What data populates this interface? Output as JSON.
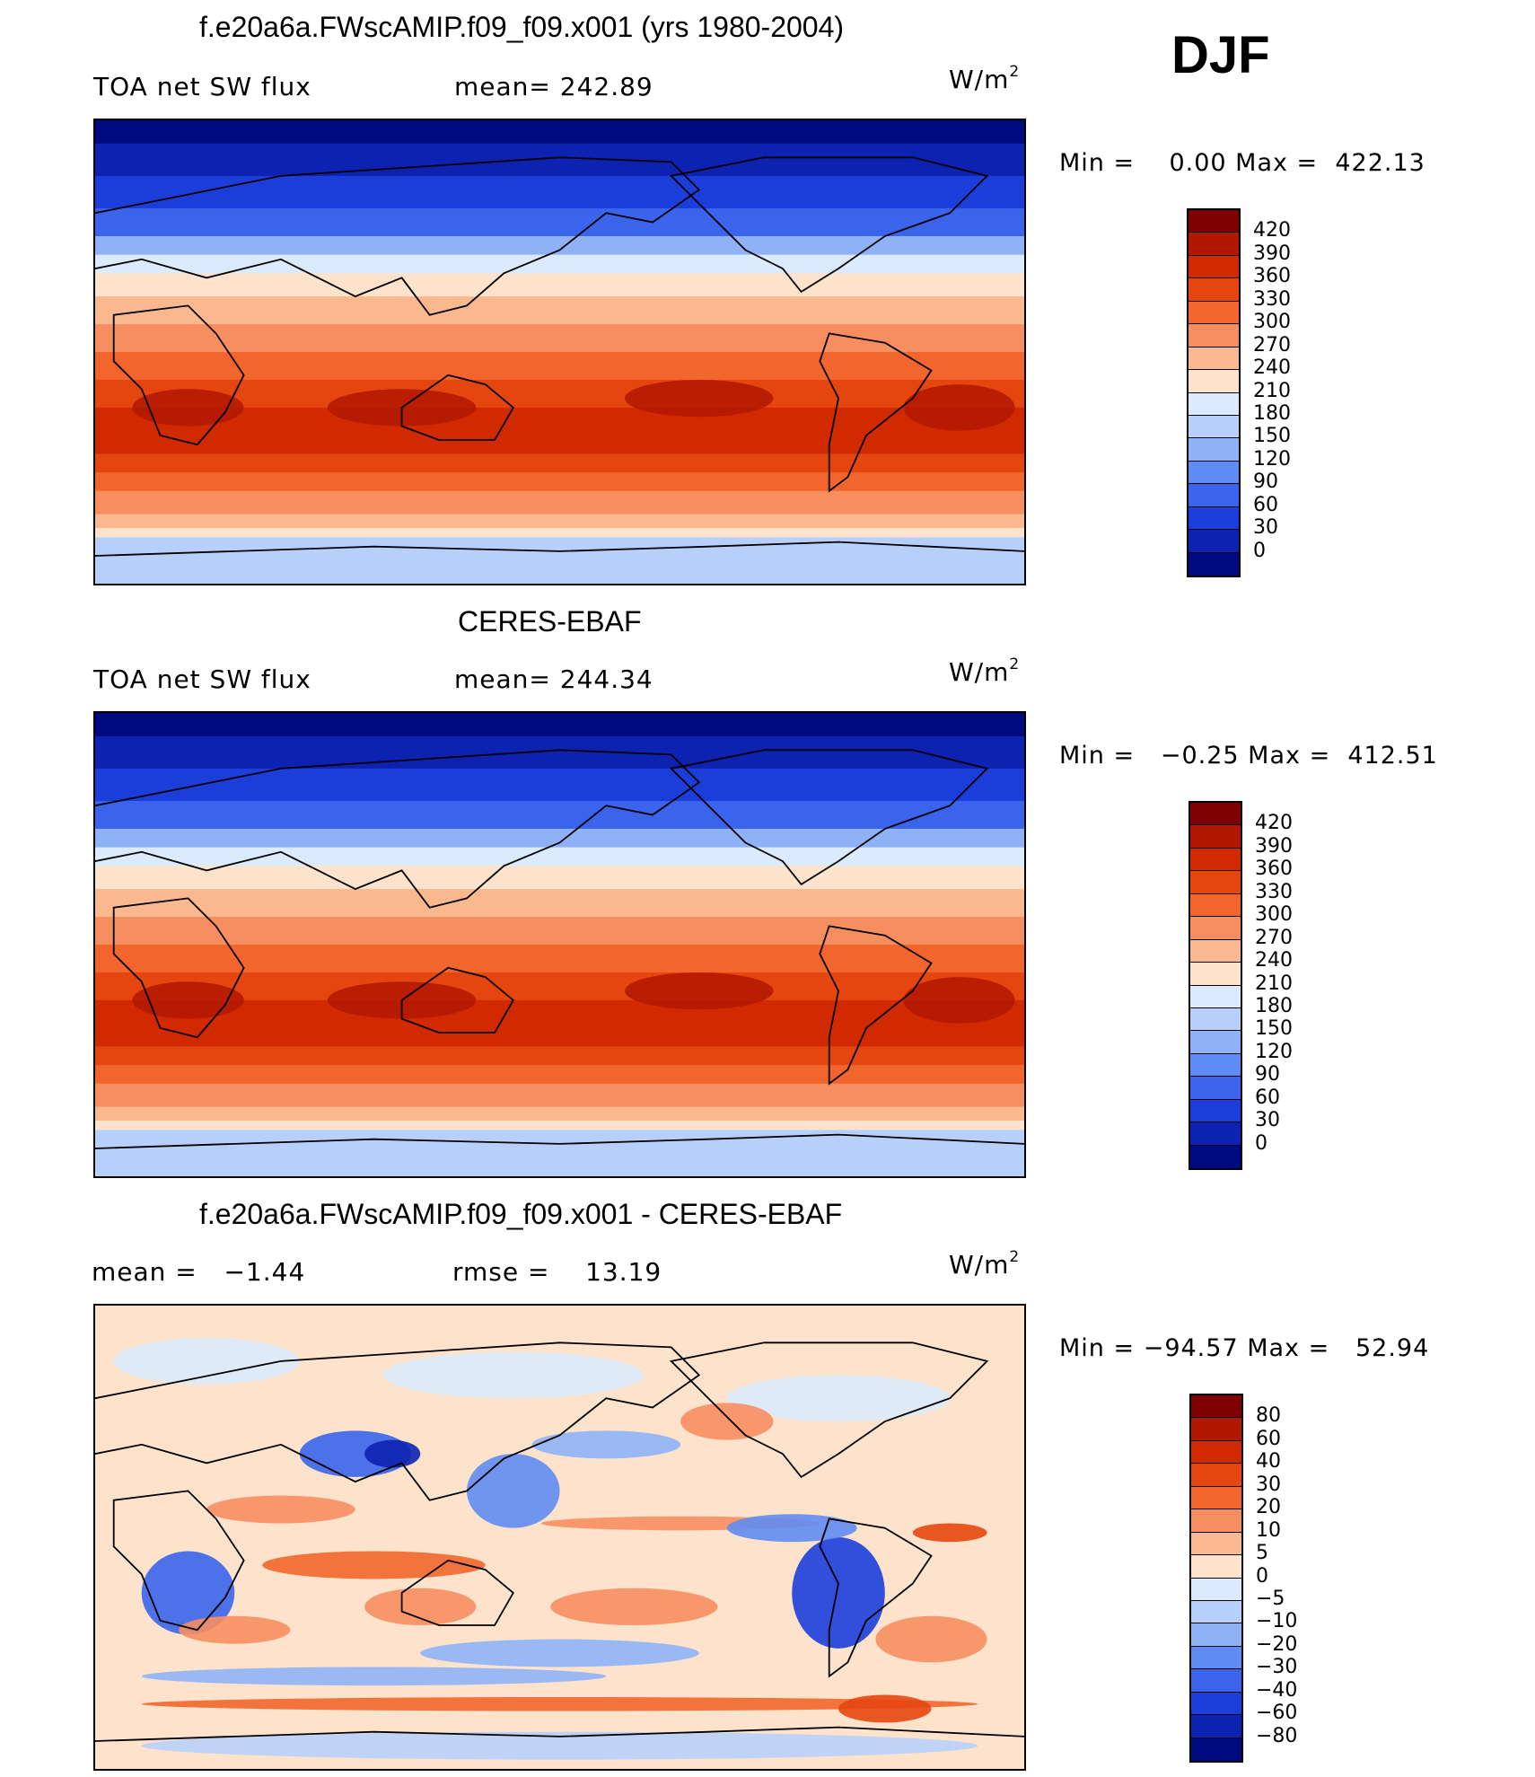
{
  "season": "DJF",
  "panels": [
    {
      "title": "f.e20a6a.FWscAMIP.f09_f09.x001 (yrs 1980-2004)",
      "left_label": "TOA net SW flux",
      "mid_label": "mean=  242.89",
      "unit": "W/m",
      "unit_sup": "2",
      "minmax": "Min =    0.00 Max =  422.13"
    },
    {
      "title": "CERES-EBAF",
      "left_label": "TOA net SW flux",
      "mid_label": "mean=  244.34",
      "unit": "W/m",
      "unit_sup": "2",
      "minmax": "Min =   −0.25 Max =  412.51"
    },
    {
      "title": "f.e20a6a.FWscAMIP.f09_f09.x001 - CERES-EBAF",
      "left_label": "mean =   −1.44",
      "mid_label": "rmse =    13.19",
      "unit": "W/m",
      "unit_sup": "2",
      "minmax": "Min = −94.57 Max =   52.94"
    }
  ],
  "colorbars": [
    {
      "labels": [
        "420",
        "390",
        "360",
        "330",
        "300",
        "270",
        "240",
        "210",
        "180",
        "150",
        "120",
        "90",
        "60",
        "30",
        "0"
      ],
      "colors": [
        "#7f0000",
        "#b21800",
        "#d22a00",
        "#e5460f",
        "#f2662e",
        "#f78e60",
        "#fab88f",
        "#fde3cc",
        "#dbeafc",
        "#b7d0fb",
        "#8fb2f7",
        "#5f8cf2",
        "#3a64ec",
        "#1b3edb",
        "#0d22b0",
        "#000a80"
      ]
    },
    {
      "labels": [
        "420",
        "390",
        "360",
        "330",
        "300",
        "270",
        "240",
        "210",
        "180",
        "150",
        "120",
        "90",
        "60",
        "30",
        "0"
      ],
      "colors": [
        "#7f0000",
        "#b21800",
        "#d22a00",
        "#e5460f",
        "#f2662e",
        "#f78e60",
        "#fab88f",
        "#fde3cc",
        "#dbeafc",
        "#b7d0fb",
        "#8fb2f7",
        "#5f8cf2",
        "#3a64ec",
        "#1b3edb",
        "#0d22b0",
        "#000a80"
      ]
    },
    {
      "labels": [
        "80",
        "60",
        "40",
        "30",
        "20",
        "10",
        "5",
        "0",
        "−5",
        "−10",
        "−20",
        "−30",
        "−40",
        "−60",
        "−80"
      ],
      "colors": [
        "#7f0000",
        "#b21800",
        "#d22a00",
        "#e5460f",
        "#f2662e",
        "#f78e60",
        "#fab88f",
        "#fde3cc",
        "#dbeafc",
        "#b7d0fb",
        "#8fb2f7",
        "#5f8cf2",
        "#3a64ec",
        "#1b3edb",
        "#0d22b0",
        "#000a80"
      ]
    }
  ]
}
